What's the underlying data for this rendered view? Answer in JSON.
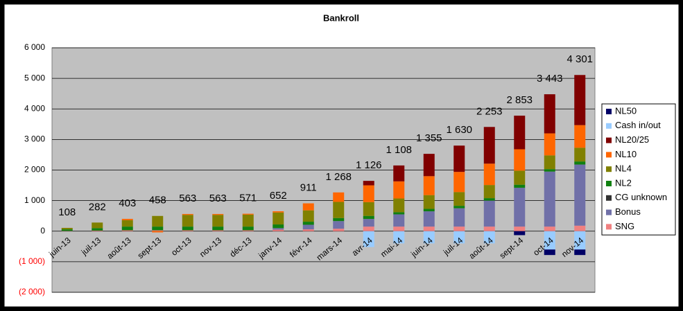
{
  "chart_data": {
    "type": "stacked_bar",
    "title": "Bankroll",
    "categories": [
      "juin-13",
      "juil-13",
      "août-13",
      "sept-13",
      "oct-13",
      "nov-13",
      "déc-13",
      "janv-14",
      "févr-14",
      "mars-14",
      "avr-14",
      "mai-14",
      "juin-14",
      "juil-14",
      "août-14",
      "sept-14",
      "oct-14",
      "nov-14"
    ],
    "series": [
      {
        "name": "NL50",
        "color": "#000066",
        "values": [
          0,
          0,
          0,
          0,
          0,
          0,
          0,
          0,
          0,
          0,
          0,
          0,
          0,
          0,
          0,
          -130,
          -180,
          -180
        ]
      },
      {
        "name": "Cash in/out",
        "color": "#99ccff",
        "values": [
          0,
          0,
          0,
          0,
          0,
          0,
          0,
          0,
          0,
          0,
          -520,
          -400,
          -400,
          -400,
          -400,
          0,
          -600,
          -600
        ]
      },
      {
        "name": "NL20/25",
        "color": "#800000",
        "values": [
          0,
          0,
          0,
          0,
          0,
          0,
          0,
          0,
          0,
          0,
          146,
          520,
          730,
          860,
          1200,
          1100,
          1280,
          1640
        ]
      },
      {
        "name": "NL10",
        "color": "#ff6600",
        "values": [
          0,
          0,
          43,
          -40,
          30,
          30,
          30,
          40,
          230,
          310,
          550,
          560,
          620,
          660,
          700,
          700,
          720,
          740
        ]
      },
      {
        "name": "NL4",
        "color": "#808000",
        "values": [
          48,
          182,
          210,
          348,
          383,
          383,
          391,
          392,
          371,
          528,
          450,
          450,
          450,
          450,
          430,
          460,
          450,
          450
        ]
      },
      {
        "name": "NL2",
        "color": "#108010",
        "values": [
          50,
          80,
          120,
          120,
          120,
          120,
          120,
          120,
          100,
          100,
          100,
          70,
          80,
          80,
          80,
          100,
          80,
          100
        ]
      },
      {
        "name": "CG unknown",
        "color": "#333333",
        "values": [
          0,
          0,
          0,
          0,
          0,
          0,
          0,
          0,
          0,
          0,
          0,
          0,
          0,
          0,
          0,
          0,
          0,
          0
        ]
      },
      {
        "name": "Bonus",
        "color": "#7070a8",
        "values": [
          0,
          0,
          0,
          0,
          0,
          0,
          0,
          50,
          150,
          250,
          250,
          400,
          500,
          600,
          850,
          1270,
          1800,
          2000
        ]
      },
      {
        "name": "SNG",
        "color": "#f08080",
        "values": [
          10,
          20,
          30,
          30,
          30,
          30,
          30,
          50,
          60,
          80,
          150,
          150,
          150,
          150,
          150,
          150,
          150,
          180
        ]
      }
    ],
    "totals": {
      "values": [
        108,
        282,
        403,
        458,
        563,
        563,
        571,
        652,
        911,
        1268,
        1126,
        1108,
        1355,
        1630,
        2253,
        2853,
        3443,
        4301
      ],
      "value_labels": [
        "108",
        "282",
        "403",
        "458",
        "563",
        "563",
        "571",
        "652",
        "911",
        "1 268",
        "1 126",
        "1 108",
        "1 355",
        "1 630",
        "2 253",
        "2 853",
        "3 443",
        "4 301"
      ]
    },
    "ylim": [
      -2000,
      6000
    ],
    "yticks": [
      {
        "value": -2000,
        "label": "(2 000)"
      },
      {
        "value": -1000,
        "label": "(1 000)"
      },
      0,
      {
        "value": 1000,
        "label": "1 000"
      },
      {
        "value": 2000,
        "label": "2 000"
      },
      {
        "value": 3000,
        "label": "3 000"
      },
      {
        "value": 4000,
        "label": "4 000"
      },
      {
        "value": 5000,
        "label": "5 000"
      },
      {
        "value": 6000,
        "label": "6 000"
      }
    ],
    "negative_tick_color": "#ff0000",
    "grid": true,
    "legend": "right",
    "plot_background": "#c0c0c0"
  }
}
